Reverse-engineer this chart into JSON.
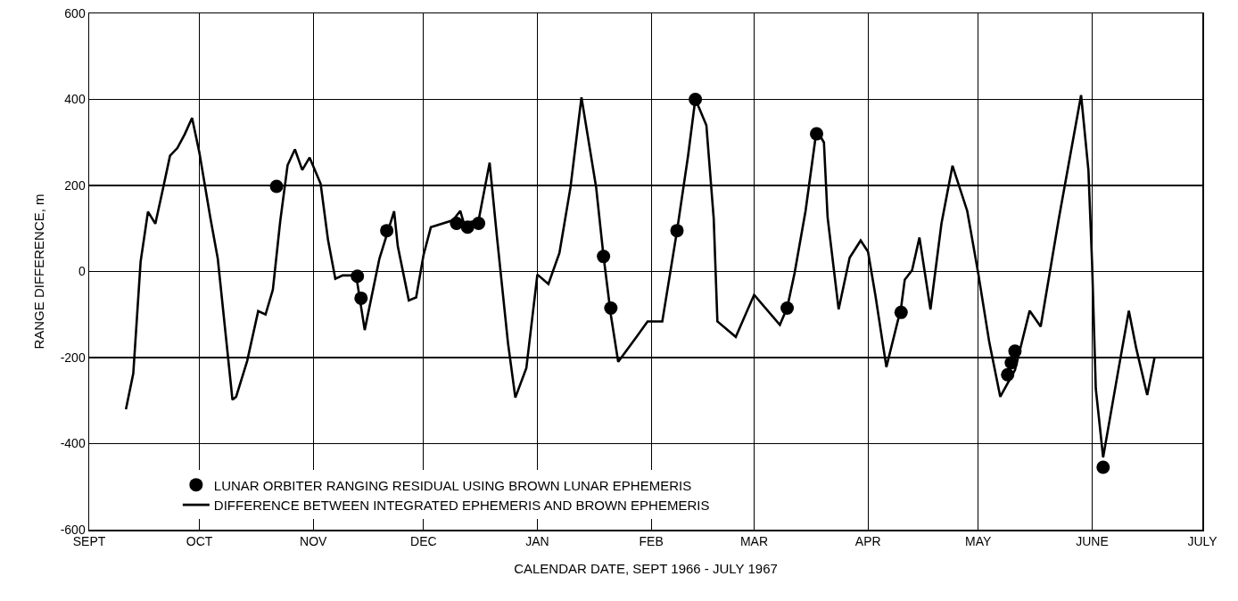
{
  "chart_data": {
    "type": "line",
    "xlabel": "CALENDAR DATE, SEPT 1966 - JULY 1967",
    "ylabel": "RANGE DIFFERENCE, m",
    "xlim": [
      "1966-09-01",
      "1967-07-01"
    ],
    "xticks": [
      {
        "value": "1966-09-01",
        "label": "SEPT"
      },
      {
        "value": "1966-10-01",
        "label": "OCT"
      },
      {
        "value": "1966-11-01",
        "label": "NOV"
      },
      {
        "value": "1966-12-01",
        "label": "DEC"
      },
      {
        "value": "1967-01-01",
        "label": "JAN"
      },
      {
        "value": "1967-02-01",
        "label": "FEB"
      },
      {
        "value": "1967-03-01",
        "label": "MAR"
      },
      {
        "value": "1967-04-01",
        "label": "APR"
      },
      {
        "value": "1967-05-01",
        "label": "MAY"
      },
      {
        "value": "1967-06-01",
        "label": "JUNE"
      },
      {
        "value": "1967-07-01",
        "label": "JULY"
      }
    ],
    "ylim": [
      -600,
      600
    ],
    "yticks": [
      -600,
      -400,
      -200,
      0,
      200,
      400,
      600
    ],
    "grid": true,
    "legend": "bottom left",
    "line_style": "solid",
    "series": [
      {
        "name": "LUNAR ORBITER RANGING RESIDUAL USING BROWN LUNAR EPHEMERIS",
        "type": "scatter",
        "color": "#000000",
        "x": [
          "1966-10-22",
          "1966-11-13",
          "1966-11-14",
          "1966-11-21",
          "1966-12-10",
          "1966-12-13",
          "1966-12-16",
          "1967-01-19",
          "1967-01-21",
          "1967-02-08",
          "1967-02-13",
          "1967-03-10",
          "1967-03-18",
          "1967-04-10",
          "1967-05-09",
          "1967-05-10",
          "1967-05-11",
          "1967-06-04"
        ],
        "values": [
          198,
          -11,
          -62,
          95,
          112,
          103,
          112,
          35,
          -85,
          95,
          400,
          -85,
          320,
          -95,
          -240,
          -212,
          -185,
          -455
        ]
      },
      {
        "name": "DIFFERENCE BETWEEN INTEGRATED EPHEMERIS AND BROWN EPHEMERIS",
        "type": "line",
        "color": "#000000",
        "x": [
          "1966-09-11",
          "1966-09-13",
          "1966-09-15",
          "1966-09-17",
          "1966-09-19",
          "1966-09-21",
          "1966-09-23",
          "1966-09-25",
          "1966-09-27",
          "1966-09-29",
          "1966-10-01",
          "1966-10-04",
          "1966-10-06",
          "1966-10-10",
          "1966-10-11",
          "1966-10-14",
          "1966-10-17",
          "1966-10-19",
          "1966-10-21",
          "1966-10-23",
          "1966-10-25",
          "1966-10-27",
          "1966-10-29",
          "1966-10-31",
          "1966-11-03",
          "1966-11-05",
          "1966-11-07",
          "1966-11-09",
          "1966-11-12",
          "1966-11-13",
          "1966-11-15",
          "1966-11-19",
          "1966-11-23",
          "1966-11-24",
          "1966-11-27",
          "1966-11-29",
          "1966-12-01",
          "1966-12-03",
          "1966-12-09",
          "1966-12-11",
          "1966-12-12",
          "1966-12-16",
          "1966-12-19",
          "1966-12-21",
          "1966-12-24",
          "1966-12-26",
          "1966-12-29",
          "1967-01-01",
          "1967-01-04",
          "1967-01-07",
          "1967-01-10",
          "1967-01-13",
          "1967-01-17",
          "1967-01-19",
          "1967-01-21",
          "1967-01-23",
          "1967-01-28",
          "1967-01-31",
          "1967-02-04",
          "1967-02-08",
          "1967-02-11",
          "1967-02-13",
          "1967-02-16",
          "1967-02-18",
          "1967-02-19",
          "1967-02-24",
          "1967-03-01",
          "1967-03-08",
          "1967-03-10",
          "1967-03-12",
          "1967-03-15",
          "1967-03-18",
          "1967-03-20",
          "1967-03-21",
          "1967-03-24",
          "1967-03-27",
          "1967-03-30",
          "1967-04-01",
          "1967-04-03",
          "1967-04-06",
          "1967-04-10",
          "1967-04-11",
          "1967-04-13",
          "1967-04-15",
          "1967-04-18",
          "1967-04-21",
          "1967-04-24",
          "1967-04-28",
          "1967-05-01",
          "1967-05-04",
          "1967-05-07",
          "1967-05-11",
          "1967-05-15",
          "1967-05-18",
          "1967-05-23",
          "1967-05-29",
          "1967-05-31",
          "1967-06-01",
          "1967-06-02",
          "1967-06-04",
          "1967-06-08",
          "1967-06-11",
          "1967-06-13",
          "1967-06-16",
          "1967-06-18"
        ],
        "values": [
          -320,
          -237,
          23,
          139,
          111,
          189,
          269,
          287,
          319,
          357,
          276,
          124,
          30,
          -298,
          -291,
          -208,
          -92,
          -100,
          -42,
          117,
          247,
          284,
          236,
          265,
          204,
          74,
          -17,
          -9,
          -9,
          -27,
          -136,
          30,
          140,
          59,
          -67,
          -60,
          38,
          103,
          119,
          141,
          112,
          119,
          253,
          80,
          -166,
          -293,
          -224,
          -7,
          -29,
          43,
          195,
          405,
          195,
          36,
          -101,
          -210,
          -152,
          -116,
          -116,
          94,
          268,
          401,
          340,
          123,
          -116,
          -152,
          -54,
          -124,
          -84,
          -4,
          141,
          329,
          300,
          126,
          -88,
          32,
          72,
          46,
          -55,
          -222,
          -84,
          -19,
          3,
          79,
          -88,
          112,
          246,
          141,
          -4,
          -164,
          -291,
          -229,
          -91,
          -128,
          126,
          410,
          235,
          17,
          -272,
          -432,
          -236,
          -91,
          -178,
          -287,
          -200
        ]
      }
    ]
  }
}
